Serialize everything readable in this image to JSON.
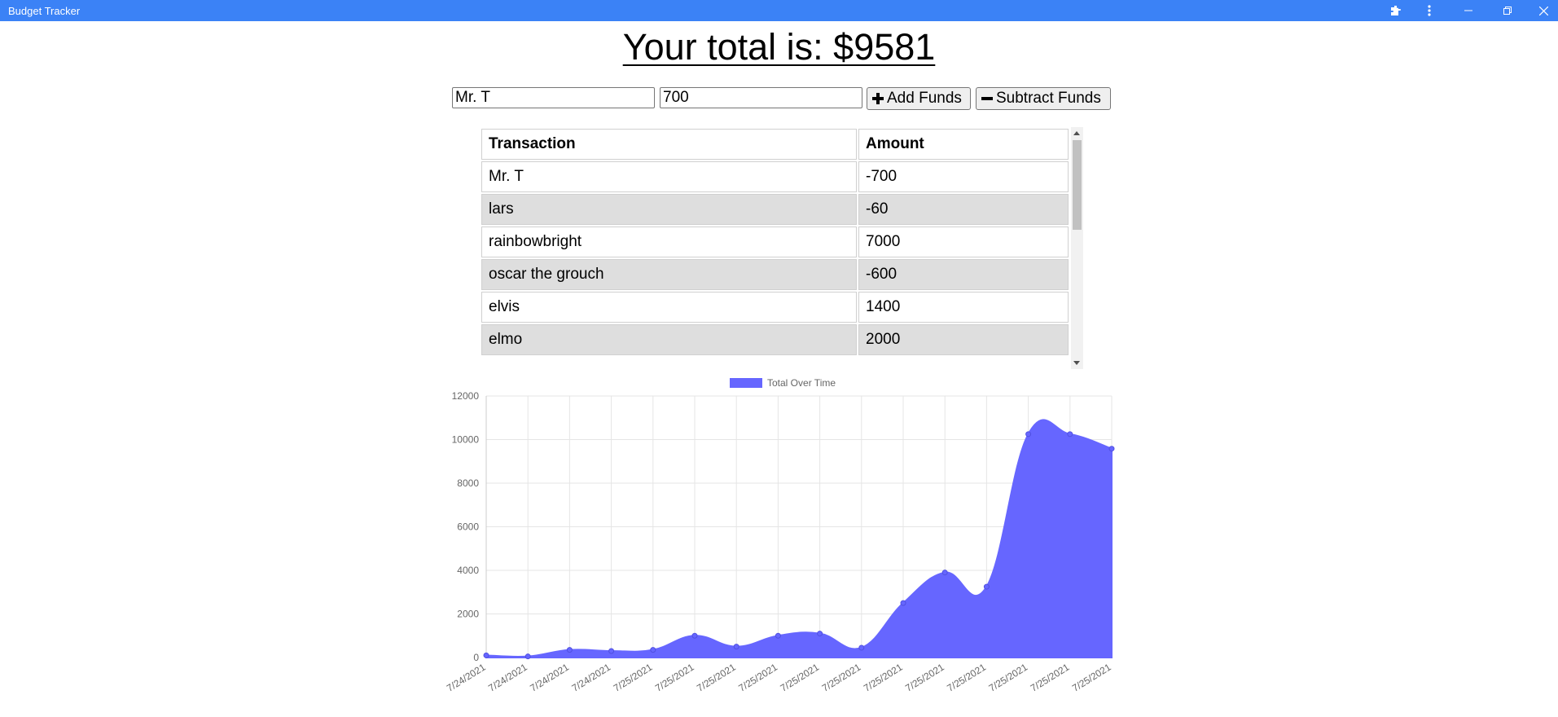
{
  "window": {
    "title": "Budget Tracker",
    "icons": [
      "puzzle-icon",
      "more-vert-icon",
      "minimize-icon",
      "restore-icon",
      "close-icon"
    ]
  },
  "header": {
    "total_text": "Your total is: $9581"
  },
  "form": {
    "name_value": "Mr. T",
    "amount_value": "700",
    "add_label": "Add Funds",
    "subtract_label": "Subtract Funds"
  },
  "table": {
    "headers": [
      "Transaction",
      "Amount"
    ],
    "rows": [
      {
        "name": "Mr. T",
        "amount": "-700"
      },
      {
        "name": "lars",
        "amount": "-60"
      },
      {
        "name": "rainbowbright",
        "amount": "7000"
      },
      {
        "name": "oscar the grouch",
        "amount": "-600"
      },
      {
        "name": "elvis",
        "amount": "1400"
      },
      {
        "name": "elmo",
        "amount": "2000"
      }
    ]
  },
  "chart_data": {
    "type": "area",
    "legend": [
      "Total Over Time"
    ],
    "legend_position": "top",
    "grid": true,
    "color": "#6666ff",
    "ylim": [
      0,
      12000
    ],
    "yticks": [
      0,
      2000,
      4000,
      6000,
      8000,
      10000,
      12000
    ],
    "x": [
      "7/24/2021",
      "7/24/2021",
      "7/24/2021",
      "7/24/2021",
      "7/25/2021",
      "7/25/2021",
      "7/25/2021",
      "7/25/2021",
      "7/25/2021",
      "7/25/2021",
      "7/25/2021",
      "7/25/2021",
      "7/25/2021",
      "7/25/2021",
      "7/25/2021",
      "7/25/2021"
    ],
    "series": [
      {
        "name": "Total Over Time",
        "values": [
          100,
          50,
          350,
          300,
          350,
          1000,
          500,
          1000,
          1100,
          450,
          2500,
          3900,
          3250,
          10250,
          10250,
          9581
        ]
      }
    ]
  }
}
